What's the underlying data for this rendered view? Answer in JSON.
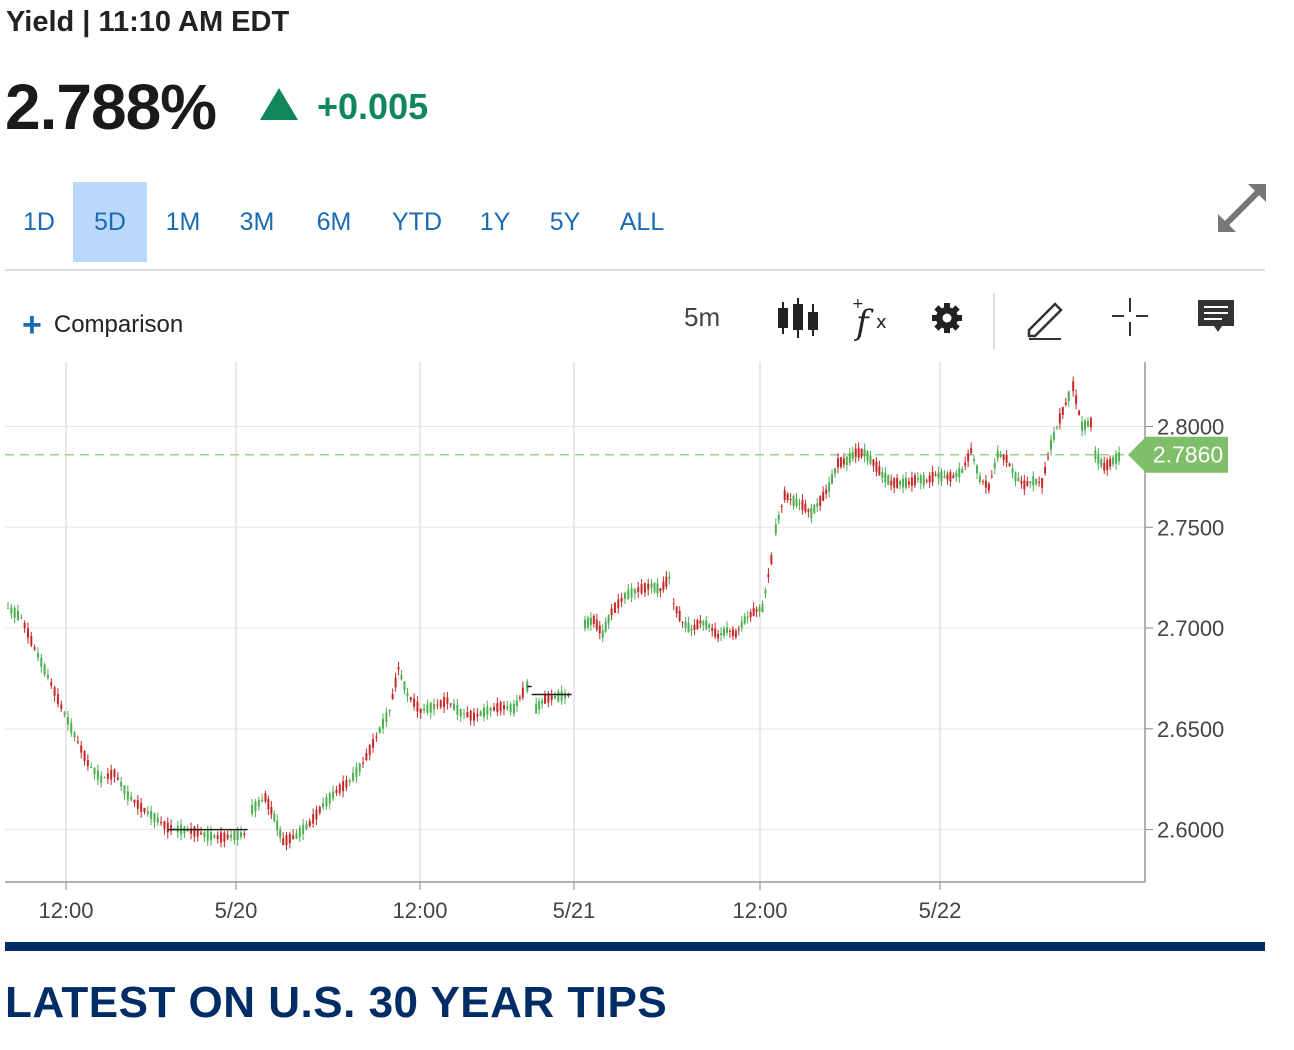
{
  "header": {
    "title": "Yield | 11:10 AM EDT",
    "price": "2.788%",
    "change": "+0.005",
    "change_color": "#10875a"
  },
  "ranges": [
    {
      "label": "1D",
      "active": false
    },
    {
      "label": "5D",
      "active": true
    },
    {
      "label": "1M",
      "active": false
    },
    {
      "label": "3M",
      "active": false
    },
    {
      "label": "6M",
      "active": false
    },
    {
      "label": "YTD",
      "active": false
    },
    {
      "label": "1Y",
      "active": false
    },
    {
      "label": "5Y",
      "active": false
    },
    {
      "label": "ALL",
      "active": false
    }
  ],
  "toolbar": {
    "comparison_label": "Comparison",
    "interval": "5m",
    "icons": [
      "candlestick-icon",
      "indicator-fx-icon",
      "settings-gear-icon",
      "draw-pencil-icon",
      "crosshair-icon",
      "comment-icon"
    ]
  },
  "chart_data": {
    "type": "line",
    "x_tick_labels": [
      "12:00",
      "5/20",
      "12:00",
      "5/21",
      "12:00",
      "5/22"
    ],
    "y_tick_labels": [
      "2.8000",
      "2.7500",
      "2.7000",
      "2.6500",
      "2.6000"
    ],
    "ylim": [
      2.574,
      2.832
    ],
    "last_price_label": "2.7860",
    "last_price": 2.786,
    "grid": true,
    "series": [
      {
        "points": [
          [
            0,
            2.71
          ],
          [
            3,
            2.705
          ],
          [
            6,
            2.69
          ],
          [
            9,
            2.676
          ],
          [
            12,
            2.661
          ],
          [
            15,
            2.647
          ],
          [
            18,
            2.633
          ],
          [
            21,
            2.625
          ],
          [
            24,
            2.628
          ],
          [
            27,
            2.617
          ],
          [
            30,
            2.611
          ],
          [
            33,
            2.606
          ],
          [
            36,
            2.601
          ],
          [
            39,
            2.6
          ],
          [
            42,
            2.599
          ],
          [
            45,
            2.597
          ],
          [
            48,
            2.596
          ],
          [
            51,
            2.597
          ],
          [
            54,
            2.598
          ],
          [
            55,
            2.61
          ],
          [
            58,
            2.616
          ],
          [
            60,
            2.606
          ],
          [
            62,
            2.594
          ],
          [
            65,
            2.597
          ],
          [
            68,
            2.603
          ],
          [
            71,
            2.612
          ],
          [
            74,
            2.619
          ],
          [
            77,
            2.624
          ],
          [
            80,
            2.633
          ],
          [
            83,
            2.646
          ],
          [
            86,
            2.659
          ],
          [
            88,
            2.68
          ],
          [
            90,
            2.667
          ],
          [
            93,
            2.659
          ],
          [
            96,
            2.661
          ],
          [
            99,
            2.664
          ],
          [
            102,
            2.658
          ],
          [
            105,
            2.656
          ],
          [
            108,
            2.659
          ],
          [
            111,
            2.661
          ],
          [
            114,
            2.66
          ],
          [
            116,
            2.668
          ],
          [
            117,
            2.671
          ],
          [
            118,
            2.67
          ],
          [
            119,
            2.66
          ],
          [
            121,
            2.665
          ],
          [
            124,
            2.666
          ],
          [
            127,
            2.667
          ],
          [
            130,
            2.702
          ],
          [
            132,
            2.704
          ],
          [
            134,
            2.697
          ],
          [
            136,
            2.708
          ],
          [
            139,
            2.716
          ],
          [
            142,
            2.719
          ],
          [
            145,
            2.721
          ],
          [
            147,
            2.719
          ],
          [
            149,
            2.725
          ],
          [
            150,
            2.712
          ],
          [
            152,
            2.703
          ],
          [
            154,
            2.699
          ],
          [
            156,
            2.703
          ],
          [
            158,
            2.701
          ],
          [
            160,
            2.696
          ],
          [
            162,
            2.699
          ],
          [
            164,
            2.697
          ],
          [
            166,
            2.704
          ],
          [
            168,
            2.708
          ],
          [
            170,
            2.71
          ],
          [
            172,
            2.734
          ],
          [
            173,
            2.749
          ],
          [
            175,
            2.766
          ],
          [
            177,
            2.763
          ],
          [
            179,
            2.761
          ],
          [
            181,
            2.757
          ],
          [
            183,
            2.763
          ],
          [
            185,
            2.77
          ],
          [
            187,
            2.782
          ],
          [
            189,
            2.783
          ],
          [
            191,
            2.787
          ],
          [
            193,
            2.787
          ],
          [
            195,
            2.782
          ],
          [
            197,
            2.776
          ],
          [
            199,
            2.772
          ],
          [
            201,
            2.772
          ],
          [
            203,
            2.772
          ],
          [
            205,
            2.774
          ],
          [
            207,
            2.773
          ],
          [
            209,
            2.776
          ],
          [
            211,
            2.775
          ],
          [
            213,
            2.775
          ],
          [
            215,
            2.778
          ],
          [
            217,
            2.788
          ],
          [
            219,
            2.774
          ],
          [
            221,
            2.77
          ],
          [
            223,
            2.786
          ],
          [
            225,
            2.784
          ],
          [
            227,
            2.775
          ],
          [
            229,
            2.771
          ],
          [
            231,
            2.773
          ],
          [
            233,
            2.772
          ],
          [
            235,
            2.791
          ],
          [
            237,
            2.804
          ],
          [
            239,
            2.815
          ],
          [
            240,
            2.82
          ],
          [
            242,
            2.8
          ],
          [
            244,
            2.802
          ],
          [
            245,
            2.786
          ],
          [
            247,
            2.78
          ],
          [
            249,
            2.783
          ],
          [
            251,
            2.786
          ]
        ]
      }
    ]
  },
  "section": {
    "title": "LATEST ON U.S. 30 YEAR TIPS"
  },
  "colors": {
    "accent_blue": "#1a6bb3",
    "active_tab_bg": "#b9d8fb",
    "up_green": "#10875a",
    "candle_up": "#4caf50",
    "candle_down": "#c62828",
    "price_tag": "#7fbf6a",
    "brand_navy": "#002d66"
  }
}
